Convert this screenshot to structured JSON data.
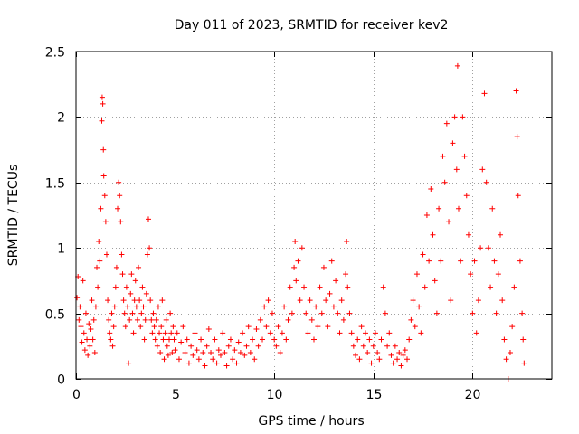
{
  "chart_data": {
    "type": "scatter",
    "title": "Day 011 of 2023, SRMTID for receiver kev2",
    "xlabel": "GPS time / hours",
    "ylabel": "SRMTID / TECUs",
    "xlim": [
      0,
      24
    ],
    "ylim": [
      0,
      2.5
    ],
    "xticks": [
      0,
      5,
      10,
      15,
      20
    ],
    "yticks": [
      0,
      0.5,
      1,
      1.5,
      2,
      2.5
    ],
    "xtick_labels": [
      "0",
      "5",
      "10",
      "15",
      "20"
    ],
    "ytick_labels": [
      "0",
      "0.5",
      "1",
      "1.5",
      "2",
      "2.5"
    ],
    "grid": true,
    "marker": "plus",
    "color": "#ff0000",
    "series": [
      {
        "name": "kev2",
        "points": [
          [
            0.05,
            0.62
          ],
          [
            0.1,
            0.78
          ],
          [
            0.15,
            0.45
          ],
          [
            0.2,
            0.55
          ],
          [
            0.25,
            0.4
          ],
          [
            0.3,
            0.28
          ],
          [
            0.35,
            0.75
          ],
          [
            0.4,
            0.35
          ],
          [
            0.45,
            0.22
          ],
          [
            0.5,
            0.5
          ],
          [
            0.55,
            0.3
          ],
          [
            0.6,
            0.18
          ],
          [
            0.65,
            0.42
          ],
          [
            0.7,
            0.25
          ],
          [
            0.75,
            0.38
          ],
          [
            0.8,
            0.6
          ],
          [
            0.85,
            0.3
          ],
          [
            0.9,
            0.45
          ],
          [
            0.95,
            0.2
          ],
          [
            1.0,
            0.55
          ],
          [
            1.05,
            0.85
          ],
          [
            1.1,
            0.7
          ],
          [
            1.15,
            1.05
          ],
          [
            1.2,
            0.9
          ],
          [
            1.25,
            1.3
          ],
          [
            1.3,
            1.97
          ],
          [
            1.32,
            2.15
          ],
          [
            1.35,
            2.1
          ],
          [
            1.38,
            1.75
          ],
          [
            1.4,
            1.55
          ],
          [
            1.45,
            1.4
          ],
          [
            1.5,
            1.2
          ],
          [
            1.55,
            0.95
          ],
          [
            1.6,
            0.6
          ],
          [
            1.65,
            0.45
          ],
          [
            1.7,
            0.35
          ],
          [
            1.75,
            0.3
          ],
          [
            1.8,
            0.5
          ],
          [
            1.85,
            0.25
          ],
          [
            1.9,
            0.4
          ],
          [
            1.95,
            0.55
          ],
          [
            2.0,
            0.7
          ],
          [
            2.05,
            0.85
          ],
          [
            2.1,
            1.3
          ],
          [
            2.15,
            1.5
          ],
          [
            2.2,
            1.4
          ],
          [
            2.25,
            1.2
          ],
          [
            2.3,
            0.95
          ],
          [
            2.35,
            0.8
          ],
          [
            2.4,
            0.6
          ],
          [
            2.45,
            0.5
          ],
          [
            2.5,
            0.4
          ],
          [
            2.55,
            0.7
          ],
          [
            2.6,
            0.55
          ],
          [
            2.65,
            0.12
          ],
          [
            2.7,
            0.45
          ],
          [
            2.75,
            0.65
          ],
          [
            2.8,
            0.8
          ],
          [
            2.85,
            0.5
          ],
          [
            2.9,
            0.35
          ],
          [
            2.95,
            0.6
          ],
          [
            3.0,
            0.75
          ],
          [
            3.05,
            0.55
          ],
          [
            3.1,
            0.45
          ],
          [
            3.15,
            0.85
          ],
          [
            3.2,
            0.6
          ],
          [
            3.25,
            0.4
          ],
          [
            3.3,
            0.5
          ],
          [
            3.35,
            0.7
          ],
          [
            3.4,
            0.55
          ],
          [
            3.45,
            0.3
          ],
          [
            3.5,
            0.45
          ],
          [
            3.55,
            0.65
          ],
          [
            3.6,
            0.95
          ],
          [
            3.65,
            1.22
          ],
          [
            3.7,
            1.0
          ],
          [
            3.75,
            0.6
          ],
          [
            3.8,
            0.45
          ],
          [
            3.85,
            0.35
          ],
          [
            3.9,
            0.5
          ],
          [
            3.95,
            0.4
          ],
          [
            4.0,
            0.3
          ],
          [
            4.05,
            0.45
          ],
          [
            4.1,
            0.25
          ],
          [
            4.15,
            0.55
          ],
          [
            4.2,
            0.35
          ],
          [
            4.25,
            0.2
          ],
          [
            4.3,
            0.4
          ],
          [
            4.35,
            0.6
          ],
          [
            4.4,
            0.3
          ],
          [
            4.45,
            0.15
          ],
          [
            4.5,
            0.35
          ],
          [
            4.55,
            0.45
          ],
          [
            4.6,
            0.25
          ],
          [
            4.65,
            0.18
          ],
          [
            4.7,
            0.3
          ],
          [
            4.75,
            0.5
          ],
          [
            4.8,
            0.35
          ],
          [
            4.85,
            0.2
          ],
          [
            4.9,
            0.4
          ],
          [
            4.95,
            0.3
          ],
          [
            5.0,
            0.22
          ],
          [
            5.1,
            0.35
          ],
          [
            5.2,
            0.15
          ],
          [
            5.3,
            0.28
          ],
          [
            5.4,
            0.4
          ],
          [
            5.5,
            0.2
          ],
          [
            5.6,
            0.3
          ],
          [
            5.7,
            0.12
          ],
          [
            5.8,
            0.25
          ],
          [
            5.9,
            0.18
          ],
          [
            6.0,
            0.35
          ],
          [
            6.1,
            0.22
          ],
          [
            6.2,
            0.15
          ],
          [
            6.3,
            0.3
          ],
          [
            6.4,
            0.2
          ],
          [
            6.5,
            0.1
          ],
          [
            6.6,
            0.25
          ],
          [
            6.7,
            0.38
          ],
          [
            6.8,
            0.2
          ],
          [
            6.9,
            0.15
          ],
          [
            7.0,
            0.3
          ],
          [
            7.1,
            0.12
          ],
          [
            7.2,
            0.22
          ],
          [
            7.3,
            0.18
          ],
          [
            7.4,
            0.35
          ],
          [
            7.5,
            0.2
          ],
          [
            7.6,
            0.1
          ],
          [
            7.7,
            0.25
          ],
          [
            7.8,
            0.3
          ],
          [
            7.9,
            0.15
          ],
          [
            8.0,
            0.22
          ],
          [
            8.1,
            0.12
          ],
          [
            8.2,
            0.28
          ],
          [
            8.3,
            0.2
          ],
          [
            8.4,
            0.35
          ],
          [
            8.5,
            0.18
          ],
          [
            8.6,
            0.25
          ],
          [
            8.7,
            0.4
          ],
          [
            8.8,
            0.2
          ],
          [
            8.9,
            0.3
          ],
          [
            9.0,
            0.15
          ],
          [
            9.1,
            0.38
          ],
          [
            9.2,
            0.25
          ],
          [
            9.3,
            0.45
          ],
          [
            9.4,
            0.3
          ],
          [
            9.5,
            0.55
          ],
          [
            9.6,
            0.4
          ],
          [
            9.7,
            0.6
          ],
          [
            9.8,
            0.35
          ],
          [
            9.9,
            0.5
          ],
          [
            10.0,
            0.3
          ],
          [
            10.1,
            0.25
          ],
          [
            10.2,
            0.4
          ],
          [
            10.3,
            0.2
          ],
          [
            10.4,
            0.35
          ],
          [
            10.5,
            0.55
          ],
          [
            10.6,
            0.3
          ],
          [
            10.7,
            0.45
          ],
          [
            10.8,
            0.7
          ],
          [
            10.9,
            0.5
          ],
          [
            11.0,
            0.85
          ],
          [
            11.05,
            1.05
          ],
          [
            11.1,
            0.75
          ],
          [
            11.2,
            0.9
          ],
          [
            11.3,
            0.6
          ],
          [
            11.4,
            1.0
          ],
          [
            11.5,
            0.7
          ],
          [
            11.6,
            0.5
          ],
          [
            11.7,
            0.35
          ],
          [
            11.8,
            0.6
          ],
          [
            11.9,
            0.45
          ],
          [
            12.0,
            0.3
          ],
          [
            12.1,
            0.55
          ],
          [
            12.2,
            0.4
          ],
          [
            12.3,
            0.7
          ],
          [
            12.4,
            0.5
          ],
          [
            12.5,
            0.85
          ],
          [
            12.6,
            0.6
          ],
          [
            12.7,
            0.4
          ],
          [
            12.8,
            0.65
          ],
          [
            12.9,
            0.9
          ],
          [
            13.0,
            0.55
          ],
          [
            13.1,
            0.75
          ],
          [
            13.2,
            0.5
          ],
          [
            13.3,
            0.35
          ],
          [
            13.4,
            0.6
          ],
          [
            13.5,
            0.45
          ],
          [
            13.6,
            0.8
          ],
          [
            13.65,
            1.05
          ],
          [
            13.7,
            0.7
          ],
          [
            13.8,
            0.5
          ],
          [
            13.9,
            0.35
          ],
          [
            14.0,
            0.25
          ],
          [
            14.1,
            0.18
          ],
          [
            14.2,
            0.3
          ],
          [
            14.3,
            0.15
          ],
          [
            14.4,
            0.4
          ],
          [
            14.5,
            0.25
          ],
          [
            14.6,
            0.35
          ],
          [
            14.7,
            0.2
          ],
          [
            14.8,
            0.3
          ],
          [
            14.9,
            0.12
          ],
          [
            15.0,
            0.25
          ],
          [
            15.1,
            0.35
          ],
          [
            15.2,
            0.2
          ],
          [
            15.3,
            0.15
          ],
          [
            15.4,
            0.3
          ],
          [
            15.5,
            0.7
          ],
          [
            15.6,
            0.5
          ],
          [
            15.7,
            0.25
          ],
          [
            15.8,
            0.35
          ],
          [
            15.9,
            0.18
          ],
          [
            16.0,
            0.12
          ],
          [
            16.1,
            0.25
          ],
          [
            16.2,
            0.15
          ],
          [
            16.3,
            0.2
          ],
          [
            16.4,
            0.1
          ],
          [
            16.5,
            0.18
          ],
          [
            16.6,
            0.22
          ],
          [
            16.7,
            0.15
          ],
          [
            16.8,
            0.3
          ],
          [
            16.9,
            0.45
          ],
          [
            17.0,
            0.6
          ],
          [
            17.1,
            0.4
          ],
          [
            17.2,
            0.8
          ],
          [
            17.3,
            0.55
          ],
          [
            17.4,
            0.35
          ],
          [
            17.5,
            0.95
          ],
          [
            17.6,
            0.7
          ],
          [
            17.7,
            1.25
          ],
          [
            17.8,
            0.9
          ],
          [
            17.9,
            1.45
          ],
          [
            18.0,
            1.1
          ],
          [
            18.1,
            0.75
          ],
          [
            18.2,
            0.5
          ],
          [
            18.3,
            1.3
          ],
          [
            18.4,
            0.9
          ],
          [
            18.5,
            1.7
          ],
          [
            18.6,
            1.5
          ],
          [
            18.7,
            1.95
          ],
          [
            18.8,
            1.2
          ],
          [
            18.9,
            0.6
          ],
          [
            19.0,
            1.8
          ],
          [
            19.1,
            2.0
          ],
          [
            19.2,
            1.6
          ],
          [
            19.25,
            2.39
          ],
          [
            19.3,
            1.3
          ],
          [
            19.4,
            0.9
          ],
          [
            19.5,
            2.0
          ],
          [
            19.6,
            1.7
          ],
          [
            19.7,
            1.4
          ],
          [
            19.8,
            1.1
          ],
          [
            19.9,
            0.8
          ],
          [
            20.0,
            0.5
          ],
          [
            20.1,
            0.9
          ],
          [
            20.2,
            0.35
          ],
          [
            20.3,
            0.6
          ],
          [
            20.4,
            1.0
          ],
          [
            20.5,
            1.6
          ],
          [
            20.6,
            2.18
          ],
          [
            20.7,
            1.5
          ],
          [
            20.8,
            1.0
          ],
          [
            20.9,
            0.7
          ],
          [
            21.0,
            1.3
          ],
          [
            21.1,
            0.9
          ],
          [
            21.2,
            0.5
          ],
          [
            21.3,
            0.8
          ],
          [
            21.4,
            1.1
          ],
          [
            21.5,
            0.6
          ],
          [
            21.6,
            0.3
          ],
          [
            21.7,
            0.15
          ],
          [
            21.8,
            0.0
          ],
          [
            21.9,
            0.2
          ],
          [
            22.0,
            0.4
          ],
          [
            22.1,
            0.7
          ],
          [
            22.2,
            2.2
          ],
          [
            22.25,
            1.85
          ],
          [
            22.3,
            1.4
          ],
          [
            22.4,
            0.9
          ],
          [
            22.5,
            0.5
          ],
          [
            22.55,
            0.3
          ],
          [
            22.6,
            0.12
          ]
        ]
      }
    ]
  }
}
